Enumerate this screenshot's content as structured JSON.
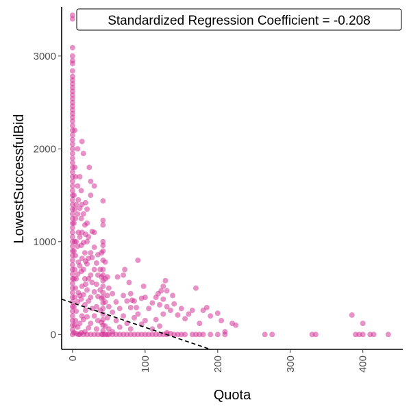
{
  "chart_data": {
    "type": "scatter",
    "title": "",
    "xlabel": "Quota",
    "ylabel": "LowestSuccessfulBid",
    "xlim": [
      -15,
      455
    ],
    "ylim": [
      -160,
      3530
    ],
    "x_ticks": [
      0,
      100,
      200,
      300,
      400
    ],
    "y_ticks": [
      0,
      1000,
      2000,
      3000
    ],
    "grid": false,
    "point_color": "#D0258F",
    "annotation": "Standardized Regression Coefficient = -0.208",
    "regression_line": {
      "style": "dashed",
      "color": "#000000",
      "points": [
        [
          -15,
          380
        ],
        [
          190,
          -160
        ]
      ]
    },
    "series": [
      {
        "points": [
          [
            0,
            3440
          ],
          [
            0,
            3400
          ],
          [
            0,
            3090
          ],
          [
            0,
            3000
          ],
          [
            0,
            2950
          ],
          [
            0,
            2920
          ],
          [
            0,
            2840
          ],
          [
            0,
            2780
          ],
          [
            0,
            2740
          ],
          [
            0,
            2700
          ],
          [
            0,
            2660
          ],
          [
            0,
            2620
          ],
          [
            0,
            2580
          ],
          [
            0,
            2540
          ],
          [
            0,
            2500
          ],
          [
            0,
            2460
          ],
          [
            0,
            2420
          ],
          [
            0,
            2380
          ],
          [
            0,
            2340
          ],
          [
            0,
            2300
          ],
          [
            0,
            2250
          ],
          [
            0,
            2200
          ],
          [
            0,
            2150
          ],
          [
            0,
            2100
          ],
          [
            0,
            2050
          ],
          [
            0,
            2000
          ],
          [
            0,
            1950
          ],
          [
            0,
            1900
          ],
          [
            0,
            1850
          ],
          [
            0,
            1800
          ],
          [
            0,
            1750
          ],
          [
            0,
            1700
          ],
          [
            0,
            1650
          ],
          [
            0,
            1600
          ],
          [
            0,
            1550
          ],
          [
            0,
            1500
          ],
          [
            0,
            1450
          ],
          [
            0,
            1400
          ],
          [
            0,
            1350
          ],
          [
            0,
            1300
          ],
          [
            0,
            1250
          ],
          [
            0,
            1200
          ],
          [
            0,
            1150
          ],
          [
            0,
            1100
          ],
          [
            0,
            1050
          ],
          [
            0,
            1000
          ],
          [
            0,
            950
          ],
          [
            0,
            900
          ],
          [
            0,
            850
          ],
          [
            0,
            800
          ],
          [
            0,
            750
          ],
          [
            0,
            700
          ],
          [
            0,
            650
          ],
          [
            0,
            600
          ],
          [
            0,
            550
          ],
          [
            0,
            500
          ],
          [
            0,
            450
          ],
          [
            0,
            400
          ],
          [
            0,
            350
          ],
          [
            0,
            300
          ],
          [
            0,
            250
          ],
          [
            0,
            200
          ],
          [
            0,
            150
          ],
          [
            0,
            100
          ],
          [
            0,
            50
          ],
          [
            0,
            0
          ],
          [
            2,
            1500
          ],
          [
            2,
            1200
          ],
          [
            2,
            900
          ],
          [
            2,
            600
          ],
          [
            2,
            300
          ],
          [
            2,
            20
          ],
          [
            3,
            2200
          ],
          [
            3,
            1800
          ],
          [
            3,
            1350
          ],
          [
            3,
            1000
          ],
          [
            3,
            700
          ],
          [
            3,
            400
          ],
          [
            3,
            100
          ],
          [
            4,
            1700
          ],
          [
            4,
            1250
          ],
          [
            4,
            850
          ],
          [
            4,
            500
          ],
          [
            4,
            150
          ],
          [
            5,
            1400
          ],
          [
            5,
            1000
          ],
          [
            5,
            600
          ],
          [
            5,
            250
          ],
          [
            5,
            10
          ],
          [
            7,
            2000
          ],
          [
            7,
            1600
          ],
          [
            7,
            1300
          ],
          [
            7,
            950
          ],
          [
            7,
            650
          ],
          [
            7,
            350
          ],
          [
            7,
            80
          ],
          [
            8,
            1450
          ],
          [
            8,
            1100
          ],
          [
            8,
            780
          ],
          [
            8,
            450
          ],
          [
            8,
            0
          ],
          [
            10,
            1700
          ],
          [
            10,
            1360
          ],
          [
            10,
            1050
          ],
          [
            10,
            740
          ],
          [
            10,
            420
          ],
          [
            10,
            120
          ],
          [
            10,
            0
          ],
          [
            12,
            1550
          ],
          [
            12,
            1250
          ],
          [
            12,
            960
          ],
          [
            12,
            680
          ],
          [
            12,
            380
          ],
          [
            12,
            20
          ],
          [
            13,
            2080
          ],
          [
            13,
            1400
          ],
          [
            13,
            1100
          ],
          [
            13,
            820
          ],
          [
            13,
            520
          ],
          [
            13,
            200
          ],
          [
            15,
            1950
          ],
          [
            15,
            1300
          ],
          [
            15,
            990
          ],
          [
            15,
            700
          ],
          [
            15,
            430
          ],
          [
            15,
            160
          ],
          [
            15,
            0
          ],
          [
            17,
            1180
          ],
          [
            17,
            880
          ],
          [
            17,
            600
          ],
          [
            17,
            320
          ],
          [
            17,
            30
          ],
          [
            18,
            1420
          ],
          [
            18,
            1080
          ],
          [
            18,
            790
          ],
          [
            18,
            540
          ],
          [
            18,
            260
          ],
          [
            20,
            1350
          ],
          [
            20,
            1200
          ],
          [
            20,
            1000
          ],
          [
            20,
            760
          ],
          [
            20,
            480
          ],
          [
            20,
            190
          ],
          [
            20,
            0
          ],
          [
            22,
            1050
          ],
          [
            22,
            820
          ],
          [
            22,
            600
          ],
          [
            22,
            360
          ],
          [
            22,
            70
          ],
          [
            23,
            1800
          ],
          [
            25,
            1650
          ],
          [
            25,
            1500
          ],
          [
            25,
            880
          ],
          [
            25,
            640
          ],
          [
            25,
            400
          ],
          [
            25,
            120
          ],
          [
            25,
            0
          ],
          [
            27,
            1110
          ],
          [
            27,
            830
          ],
          [
            27,
            560
          ],
          [
            27,
            280
          ],
          [
            30,
            1100
          ],
          [
            30,
            1600
          ],
          [
            30,
            940
          ],
          [
            30,
            700
          ],
          [
            30,
            460
          ],
          [
            30,
            200
          ],
          [
            30,
            0
          ],
          [
            33,
            770
          ],
          [
            33,
            540
          ],
          [
            33,
            300
          ],
          [
            33,
            60
          ],
          [
            35,
            860
          ],
          [
            35,
            640
          ],
          [
            35,
            410
          ],
          [
            35,
            150
          ],
          [
            35,
            0
          ],
          [
            38,
            700
          ],
          [
            38,
            480
          ],
          [
            38,
            260
          ],
          [
            40,
            880
          ],
          [
            40,
            620
          ],
          [
            40,
            390
          ],
          [
            40,
            130
          ],
          [
            40,
            0
          ],
          [
            42,
            1440
          ],
          [
            42,
            1230
          ],
          [
            42,
            1180
          ],
          [
            42,
            1000
          ],
          [
            42,
            960
          ],
          [
            42,
            900
          ],
          [
            42,
            800
          ],
          [
            42,
            700
          ],
          [
            42,
            640
          ],
          [
            42,
            580
          ],
          [
            42,
            520
          ],
          [
            42,
            450
          ],
          [
            42,
            400
          ],
          [
            42,
            340
          ],
          [
            42,
            280
          ],
          [
            42,
            220
          ],
          [
            42,
            160
          ],
          [
            42,
            100
          ],
          [
            42,
            40
          ],
          [
            42,
            0
          ],
          [
            45,
            780
          ],
          [
            45,
            600
          ],
          [
            45,
            350
          ],
          [
            45,
            90
          ],
          [
            45,
            0
          ],
          [
            48,
            620
          ],
          [
            48,
            420
          ],
          [
            48,
            180
          ],
          [
            48,
            0
          ],
          [
            50,
            500
          ],
          [
            50,
            300
          ],
          [
            50,
            60
          ],
          [
            50,
            0
          ],
          [
            55,
            440
          ],
          [
            55,
            240
          ],
          [
            55,
            30
          ],
          [
            55,
            0
          ],
          [
            60,
            350
          ],
          [
            60,
            150
          ],
          [
            60,
            0
          ],
          [
            62,
            620
          ],
          [
            65,
            280
          ],
          [
            65,
            80
          ],
          [
            65,
            0
          ],
          [
            70,
            640
          ],
          [
            70,
            420
          ],
          [
            70,
            200
          ],
          [
            70,
            0
          ],
          [
            72,
            700
          ],
          [
            75,
            360
          ],
          [
            75,
            120
          ],
          [
            75,
            0
          ],
          [
            78,
            560
          ],
          [
            80,
            440
          ],
          [
            80,
            290
          ],
          [
            80,
            60
          ],
          [
            80,
            0
          ],
          [
            82,
            370
          ],
          [
            85,
            360
          ],
          [
            85,
            180
          ],
          [
            85,
            0
          ],
          [
            88,
            290
          ],
          [
            90,
            800
          ],
          [
            90,
            220
          ],
          [
            90,
            0
          ],
          [
            95,
            390
          ],
          [
            95,
            110
          ],
          [
            95,
            0
          ],
          [
            98,
            520
          ],
          [
            100,
            400
          ],
          [
            100,
            150
          ],
          [
            100,
            0
          ],
          [
            105,
            280
          ],
          [
            105,
            0
          ],
          [
            110,
            340
          ],
          [
            110,
            60
          ],
          [
            110,
            0
          ],
          [
            115,
            400
          ],
          [
            115,
            160
          ],
          [
            115,
            0
          ],
          [
            118,
            440
          ],
          [
            120,
            320
          ],
          [
            120,
            90
          ],
          [
            120,
            0
          ],
          [
            122,
            470
          ],
          [
            125,
            520
          ],
          [
            125,
            380
          ],
          [
            125,
            220
          ],
          [
            125,
            0
          ],
          [
            128,
            580
          ],
          [
            130,
            470
          ],
          [
            130,
            300
          ],
          [
            130,
            20
          ],
          [
            130,
            0
          ],
          [
            135,
            260
          ],
          [
            135,
            10
          ],
          [
            138,
            420
          ],
          [
            140,
            330
          ],
          [
            140,
            0
          ],
          [
            145,
            210
          ],
          [
            145,
            0
          ],
          [
            150,
            280
          ],
          [
            150,
            0
          ],
          [
            155,
            170
          ],
          [
            155,
            0
          ],
          [
            160,
            220
          ],
          [
            165,
            260
          ],
          [
            165,
            0
          ],
          [
            170,
            500
          ],
          [
            170,
            0
          ],
          [
            175,
            120
          ],
          [
            175,
            0
          ],
          [
            180,
            260
          ],
          [
            180,
            0
          ],
          [
            185,
            290
          ],
          [
            190,
            200
          ],
          [
            190,
            0
          ],
          [
            200,
            230
          ],
          [
            200,
            0
          ],
          [
            205,
            150
          ],
          [
            210,
            30
          ],
          [
            210,
            0
          ],
          [
            220,
            120
          ],
          [
            225,
            100
          ],
          [
            265,
            0
          ],
          [
            275,
            0
          ],
          [
            330,
            0
          ],
          [
            335,
            0
          ],
          [
            385,
            210
          ],
          [
            390,
            0
          ],
          [
            395,
            0
          ],
          [
            400,
            0
          ],
          [
            400,
            120
          ],
          [
            410,
            0
          ],
          [
            415,
            0
          ],
          [
            435,
            0
          ]
        ]
      }
    ]
  }
}
